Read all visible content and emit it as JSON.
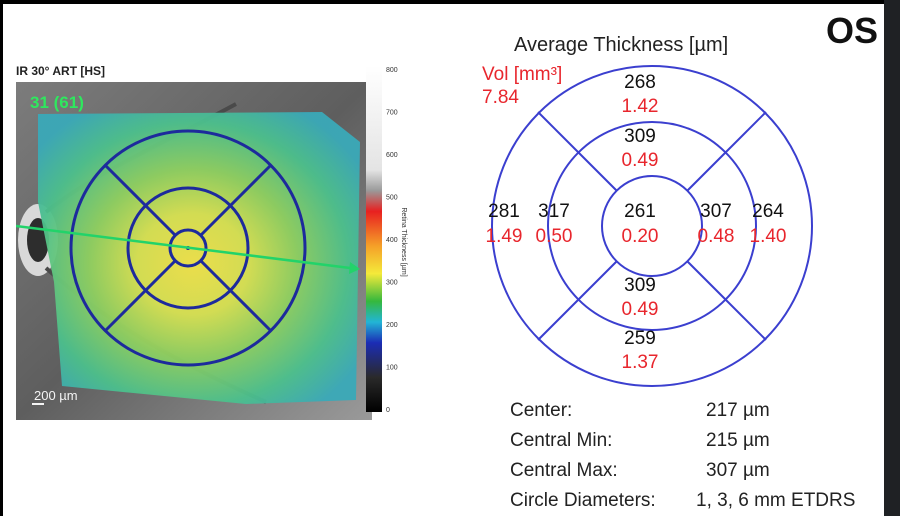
{
  "scan": {
    "label": "IR 30° ART [HS]",
    "overlay_number": "31 (61)",
    "scale_bar": "200 µm"
  },
  "colorbar": {
    "title": "Retina Thickness [µm]",
    "ticks": [
      "800",
      "700",
      "600",
      "500",
      "400",
      "300",
      "200",
      "100",
      "0"
    ],
    "colors": {
      "top": "#ffffff",
      "light_gray": "#e4e4e4",
      "gray": "#9a9a9a",
      "red": "#e82020",
      "orange": "#f5a028",
      "yellow": "#f4ea3a",
      "green": "#35b83d",
      "cyan": "#22b5d6",
      "blue": "#1b2cb5",
      "dark": "#2a2a2a",
      "black": "#000000"
    }
  },
  "eye": "OS",
  "map": {
    "title": "Average Thickness [µm]",
    "vol_label": "Vol [mm³]",
    "vol_total": "7.84",
    "center": {
      "thickness": "261",
      "volume": "0.20"
    },
    "inner_superior": {
      "thickness": "309",
      "volume": "0.49"
    },
    "inner_inferior": {
      "thickness": "309",
      "volume": "0.49"
    },
    "inner_temporal": {
      "thickness": "317",
      "volume": "0.50"
    },
    "inner_nasal": {
      "thickness": "307",
      "volume": "0.48"
    },
    "outer_superior": {
      "thickness": "268",
      "volume": "1.42"
    },
    "outer_inferior": {
      "thickness": "259",
      "volume": "1.37"
    },
    "outer_temporal": {
      "thickness": "281",
      "volume": "1.49"
    },
    "outer_nasal": {
      "thickness": "264",
      "volume": "1.40"
    },
    "colors": {
      "grid": "#3b3fcf",
      "thickness_text": "#111111",
      "volume_text": "#e8262d"
    }
  },
  "stats": [
    {
      "label": "Center:",
      "value": "217 µm"
    },
    {
      "label": "Central Min:",
      "value": "215 µm"
    },
    {
      "label": "Central Max:",
      "value": "307 µm"
    },
    {
      "label": "Circle Diameters:",
      "value": "1, 3, 6 mm ETDRS"
    }
  ]
}
